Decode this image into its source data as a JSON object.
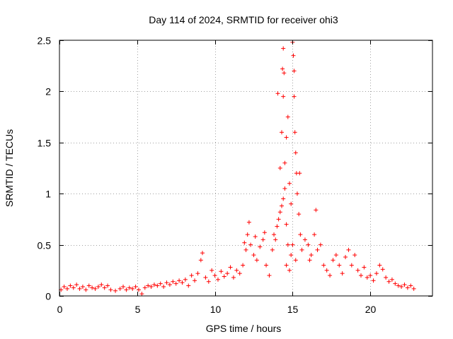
{
  "chart_data": {
    "type": "scatter",
    "title": "Day 114 of 2024, SRMTID for receiver ohi3",
    "xlabel": "GPS time / hours",
    "ylabel": "SRMTID / TECUs",
    "xlim": [
      0,
      24
    ],
    "ylim": [
      0,
      2.5
    ],
    "xticks": [
      0,
      5,
      10,
      15,
      20
    ],
    "xtick_labels": [
      "0",
      "5",
      "10",
      "15",
      "20"
    ],
    "yticks": [
      0,
      0.5,
      1,
      1.5,
      2,
      2.5
    ],
    "ytick_labels": [
      "0",
      "0.5",
      "1",
      "1.5",
      "2",
      "2.5"
    ],
    "grid": true,
    "marker": "+",
    "series": [
      {
        "name": "ohi3",
        "color": "#ff0000",
        "points": [
          [
            0.1,
            0.06
          ],
          [
            0.3,
            0.09
          ],
          [
            0.5,
            0.07
          ],
          [
            0.7,
            0.1
          ],
          [
            0.9,
            0.08
          ],
          [
            1.1,
            0.11
          ],
          [
            1.3,
            0.07
          ],
          [
            1.5,
            0.09
          ],
          [
            1.7,
            0.06
          ],
          [
            1.9,
            0.1
          ],
          [
            2.1,
            0.08
          ],
          [
            2.3,
            0.07
          ],
          [
            2.5,
            0.09
          ],
          [
            2.7,
            0.11
          ],
          [
            2.9,
            0.08
          ],
          [
            3.1,
            0.1
          ],
          [
            3.3,
            0.06
          ],
          [
            3.6,
            0.05
          ],
          [
            3.9,
            0.07
          ],
          [
            4.1,
            0.09
          ],
          [
            4.3,
            0.06
          ],
          [
            4.5,
            0.08
          ],
          [
            4.7,
            0.07
          ],
          [
            4.9,
            0.09
          ],
          [
            5.1,
            0.06
          ],
          [
            5.3,
            0.02
          ],
          [
            5.5,
            0.08
          ],
          [
            5.7,
            0.1
          ],
          [
            5.9,
            0.09
          ],
          [
            6.1,
            0.11
          ],
          [
            6.3,
            0.1
          ],
          [
            6.5,
            0.12
          ],
          [
            6.7,
            0.09
          ],
          [
            6.9,
            0.13
          ],
          [
            7.1,
            0.11
          ],
          [
            7.3,
            0.14
          ],
          [
            7.5,
            0.12
          ],
          [
            7.7,
            0.15
          ],
          [
            7.9,
            0.13
          ],
          [
            8.1,
            0.16
          ],
          [
            8.3,
            0.1
          ],
          [
            8.5,
            0.2
          ],
          [
            8.7,
            0.15
          ],
          [
            8.9,
            0.22
          ],
          [
            9.1,
            0.35
          ],
          [
            9.2,
            0.42
          ],
          [
            9.4,
            0.18
          ],
          [
            9.6,
            0.14
          ],
          [
            9.8,
            0.25
          ],
          [
            10.0,
            0.2
          ],
          [
            10.2,
            0.16
          ],
          [
            10.4,
            0.24
          ],
          [
            10.6,
            0.19
          ],
          [
            10.8,
            0.22
          ],
          [
            11.0,
            0.28
          ],
          [
            11.2,
            0.18
          ],
          [
            11.4,
            0.25
          ],
          [
            11.6,
            0.22
          ],
          [
            11.8,
            0.3
          ],
          [
            12.0,
            0.45
          ],
          [
            12.1,
            0.6
          ],
          [
            12.2,
            0.72
          ],
          [
            12.3,
            0.5
          ],
          [
            12.5,
            0.4
          ],
          [
            12.7,
            0.35
          ],
          [
            12.9,
            0.48
          ],
          [
            13.1,
            0.55
          ],
          [
            13.3,
            0.3
          ],
          [
            13.5,
            0.2
          ],
          [
            13.7,
            0.45
          ],
          [
            13.8,
            0.6
          ],
          [
            13.9,
            0.55
          ],
          [
            14.0,
            0.68
          ],
          [
            14.1,
            0.75
          ],
          [
            14.2,
            0.82
          ],
          [
            14.3,
            0.88
          ],
          [
            14.4,
            0.95
          ],
          [
            14.5,
            1.05
          ],
          [
            14.6,
            0.7
          ],
          [
            14.7,
            0.5
          ],
          [
            14.2,
            1.25
          ],
          [
            14.3,
            1.6
          ],
          [
            14.4,
            1.95
          ],
          [
            14.35,
            2.22
          ],
          [
            14.4,
            2.42
          ],
          [
            14.5,
            1.3
          ],
          [
            14.6,
            1.55
          ],
          [
            14.7,
            1.75
          ],
          [
            14.8,
            1.1
          ],
          [
            14.9,
            0.9
          ],
          [
            15.0,
            2.48
          ],
          [
            15.05,
            2.35
          ],
          [
            15.1,
            2.2
          ],
          [
            15.1,
            1.95
          ],
          [
            15.15,
            1.6
          ],
          [
            15.2,
            1.4
          ],
          [
            15.25,
            1.2
          ],
          [
            15.3,
            1.0
          ],
          [
            15.4,
            0.8
          ],
          [
            15.5,
            0.6
          ],
          [
            14.6,
            0.3
          ],
          [
            14.8,
            0.25
          ],
          [
            14.9,
            0.4
          ],
          [
            15.0,
            0.5
          ],
          [
            15.2,
            0.35
          ],
          [
            15.6,
            0.45
          ],
          [
            15.8,
            0.55
          ],
          [
            16.0,
            0.5
          ],
          [
            16.2,
            0.4
          ],
          [
            16.4,
            0.6
          ],
          [
            16.5,
            0.84
          ],
          [
            16.6,
            0.45
          ],
          [
            16.8,
            0.5
          ],
          [
            17.0,
            0.3
          ],
          [
            17.2,
            0.25
          ],
          [
            17.4,
            0.2
          ],
          [
            17.6,
            0.35
          ],
          [
            17.8,
            0.4
          ],
          [
            18.0,
            0.3
          ],
          [
            18.2,
            0.22
          ],
          [
            18.4,
            0.38
          ],
          [
            18.6,
            0.45
          ],
          [
            18.8,
            0.3
          ],
          [
            19.0,
            0.4
          ],
          [
            19.2,
            0.25
          ],
          [
            19.4,
            0.2
          ],
          [
            19.6,
            0.28
          ],
          [
            19.8,
            0.18
          ],
          [
            20.0,
            0.2
          ],
          [
            20.2,
            0.15
          ],
          [
            20.4,
            0.22
          ],
          [
            20.6,
            0.3
          ],
          [
            20.8,
            0.26
          ],
          [
            21.0,
            0.18
          ],
          [
            21.2,
            0.14
          ],
          [
            21.4,
            0.16
          ],
          [
            21.6,
            0.12
          ],
          [
            21.8,
            0.1
          ],
          [
            22.0,
            0.09
          ],
          [
            22.2,
            0.11
          ],
          [
            22.4,
            0.08
          ],
          [
            22.6,
            0.1
          ],
          [
            22.8,
            0.07
          ],
          [
            14.05,
            1.98
          ],
          [
            14.45,
            2.18
          ],
          [
            15.45,
            1.2
          ],
          [
            16.1,
            0.35
          ],
          [
            12.6,
            0.58
          ],
          [
            13.2,
            0.62
          ],
          [
            11.9,
            0.52
          ]
        ]
      }
    ]
  }
}
